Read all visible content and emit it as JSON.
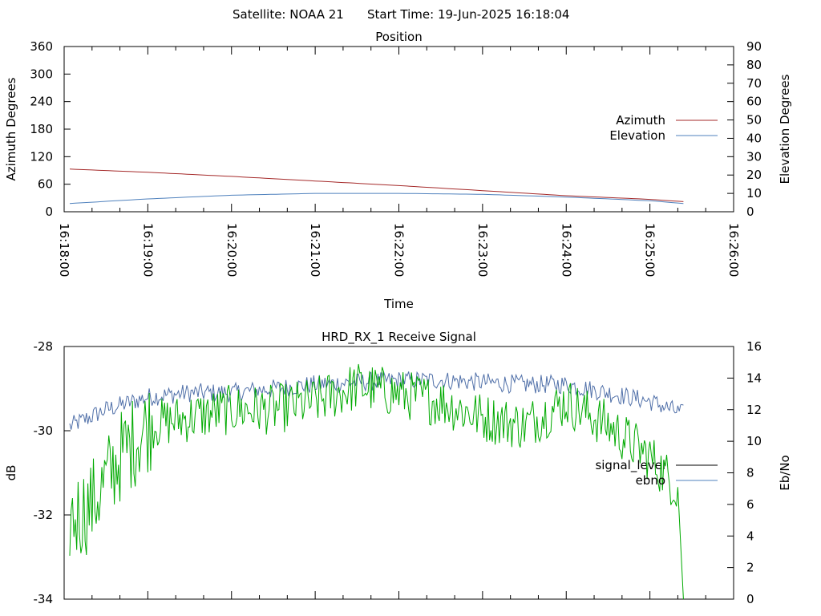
{
  "header": {
    "satellite": "Satellite: NOAA 21",
    "start_time": "Start Time: 19-Jun-2025 16:18:04"
  },
  "colors": {
    "azimuth": "#a52a2a",
    "elevation": "#4f81bd",
    "signal_level": "#000000",
    "ebno_trace": "#00aa00",
    "ebno_legend": "#4f81bd",
    "upper_trace": "#4f6fa8"
  },
  "chart_data": [
    {
      "type": "line",
      "title": "Position",
      "xlabel": "Time",
      "ylabel": "Azimuth Degrees",
      "y2label": "Elevation Degrees",
      "xlim": [
        "16:18:00",
        "16:26:00"
      ],
      "x_ticks": [
        "16:18:00",
        "16:19:00",
        "16:20:00",
        "16:21:00",
        "16:22:00",
        "16:23:00",
        "16:24:00",
        "16:25:00",
        "16:26:00"
      ],
      "ylim": [
        0,
        360
      ],
      "y_ticks": [
        "0",
        "60",
        "120",
        "180",
        "240",
        "300",
        "360"
      ],
      "y2lim": [
        0,
        90
      ],
      "y2_ticks": [
        "0",
        "10",
        "20",
        "30",
        "40",
        "50",
        "60",
        "70",
        "80",
        "90"
      ],
      "legend_position": "right",
      "grid": false,
      "series": [
        {
          "name": "Azimuth",
          "axis": "y",
          "x": [
            "16:18:04",
            "16:19:00",
            "16:20:00",
            "16:21:00",
            "16:22:00",
            "16:23:00",
            "16:24:00",
            "16:25:00",
            "16:25:24"
          ],
          "y": [
            93,
            86,
            77,
            67,
            57,
            46,
            35,
            27,
            22
          ]
        },
        {
          "name": "Elevation",
          "axis": "y2",
          "x": [
            "16:18:04",
            "16:19:00",
            "16:20:00",
            "16:21:00",
            "16:22:00",
            "16:23:00",
            "16:24:00",
            "16:25:00",
            "16:25:24"
          ],
          "y": [
            4.5,
            7.0,
            9.0,
            10.0,
            10.0,
            9.5,
            8.0,
            6.0,
            4.5
          ]
        }
      ]
    },
    {
      "type": "line",
      "title": "HRD_RX_1 Receive Signal",
      "ylabel": "dB",
      "y2label": "Eb/No",
      "xlim": [
        "16:18:00",
        "16:26:00"
      ],
      "ylim": [
        -34,
        -28
      ],
      "y_ticks": [
        "-34",
        "-32",
        "-30",
        "-28"
      ],
      "y2lim": [
        0,
        16
      ],
      "y2_ticks": [
        "0",
        "2",
        "4",
        "6",
        "8",
        "10",
        "12",
        "14",
        "16"
      ],
      "legend_position": "right",
      "grid": false,
      "series": [
        {
          "name": "signal_level",
          "axis": "y",
          "x": [
            "16:18:04",
            "16:18:30",
            "16:19:00",
            "16:19:30",
            "16:20:00",
            "16:20:30",
            "16:21:00",
            "16:21:30",
            "16:22:00",
            "16:22:30",
            "16:23:00",
            "16:23:30",
            "16:24:00",
            "16:24:30",
            "16:25:00",
            "16:25:24"
          ],
          "y": [
            -29.9,
            -29.5,
            -29.2,
            -29.1,
            -29.1,
            -29.0,
            -28.9,
            -28.85,
            -28.8,
            -28.8,
            -28.85,
            -28.9,
            -28.9,
            -29.1,
            -29.3,
            -29.6
          ]
        },
        {
          "name": "ebno",
          "axis": "y2",
          "x": [
            "16:18:04",
            "16:18:20",
            "16:18:40",
            "16:19:00",
            "16:19:30",
            "16:20:00",
            "16:20:30",
            "16:21:00",
            "16:21:30",
            "16:22:00",
            "16:22:30",
            "16:23:00",
            "16:23:30",
            "16:24:00",
            "16:24:30",
            "16:25:00",
            "16:25:20",
            "16:25:24"
          ],
          "y": [
            5,
            6,
            9,
            11,
            11.5,
            12,
            12,
            12.5,
            13.5,
            13,
            12.5,
            11.5,
            11,
            12.5,
            11,
            9,
            7,
            0
          ]
        }
      ]
    }
  ]
}
